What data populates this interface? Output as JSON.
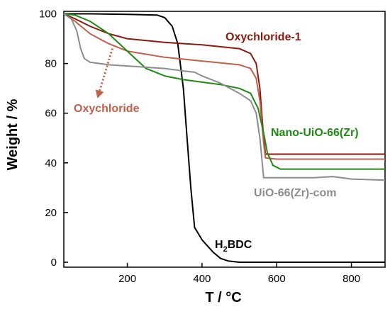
{
  "chart_data": {
    "type": "line",
    "title": "",
    "xlabel": "T / °C",
    "ylabel": "Weight / %",
    "xlim": [
      30,
      890
    ],
    "ylim": [
      -2,
      101
    ],
    "x_ticks": [
      "200",
      "400",
      "600",
      "800"
    ],
    "x_tick_values": [
      200,
      400,
      600,
      800
    ],
    "y_ticks": [
      "0",
      "20",
      "40",
      "60",
      "80",
      "100"
    ],
    "y_tick_values": [
      0,
      20,
      40,
      60,
      80,
      100
    ],
    "grid": false,
    "legend": "none",
    "series": [
      {
        "name": "H2BDC",
        "color": "#000000",
        "x": [
          30,
          100,
          200,
          280,
          300,
          320,
          335,
          350,
          360,
          370,
          380,
          400,
          430,
          450,
          470,
          500,
          600,
          700,
          800,
          890
        ],
        "y": [
          100,
          100,
          99.8,
          99.5,
          98.5,
          95,
          88,
          70,
          50,
          30,
          14,
          9,
          4,
          1.5,
          0.5,
          0,
          0,
          0,
          0,
          0
        ]
      },
      {
        "name": "Oxychloride-1",
        "color": "#8b1a0e",
        "x": [
          30,
          60,
          100,
          150,
          200,
          300,
          400,
          500,
          530,
          545,
          555,
          565,
          570,
          600,
          700,
          800,
          890
        ],
        "y": [
          100,
          98,
          95,
          92,
          90,
          88.5,
          87.5,
          86,
          84,
          80,
          70,
          50,
          43.5,
          43.5,
          43.5,
          43.5,
          43.5
        ]
      },
      {
        "name": "Oxychloride",
        "color": "#c0604a",
        "x": [
          30,
          60,
          100,
          150,
          200,
          300,
          400,
          500,
          530,
          545,
          555,
          565,
          570,
          600,
          700,
          800,
          890
        ],
        "y": [
          100,
          97,
          92,
          88,
          85,
          82.5,
          81,
          79.5,
          78,
          74,
          65,
          48,
          42,
          41.5,
          41.5,
          41.5,
          41.5
        ]
      },
      {
        "name": "Nano-UiO-66(Zr)",
        "color": "#1e8a14",
        "x": [
          30,
          60,
          100,
          150,
          200,
          250,
          300,
          350,
          400,
          450,
          500,
          530,
          550,
          565,
          575,
          590,
          610,
          650,
          700,
          800,
          890
        ],
        "y": [
          100,
          99.5,
          97,
          92,
          85,
          78,
          75,
          73.5,
          72.5,
          71.5,
          70,
          68,
          62,
          52,
          44,
          39,
          37.5,
          37.5,
          37.5,
          37.5,
          37.5
        ]
      },
      {
        "name": "UiO-66(Zr)-com",
        "color": "#8c8c8c",
        "x": [
          30,
          50,
          65,
          75,
          85,
          100,
          150,
          200,
          300,
          350,
          380,
          400,
          450,
          500,
          530,
          545,
          555,
          565,
          600,
          700,
          750,
          800,
          890
        ],
        "y": [
          100,
          98,
          93,
          86,
          82,
          80.5,
          79.5,
          79,
          78,
          77,
          76.5,
          75,
          72,
          68,
          65,
          60,
          50,
          34,
          34,
          34,
          34.5,
          33.5,
          33
        ]
      }
    ],
    "annotations": [
      {
        "label_prefix": "H",
        "label_sub": "2",
        "label_suffix": "BDC",
        "series": "H2BDC",
        "color": "#000000"
      },
      {
        "label": "Oxychloride-1",
        "color": "#8b1a0e"
      },
      {
        "label": "Oxychloride",
        "color": "#c0604a"
      },
      {
        "label": "Nano-UiO-66(Zr)",
        "color": "#1e8a14"
      },
      {
        "label": "UiO-66(Zr)-com",
        "color": "#8c8c8c"
      }
    ],
    "arrow": {
      "from": [
        160,
        86
      ],
      "to": [
        120,
        66
      ],
      "color": "#c0604a",
      "style": "dotted"
    }
  }
}
